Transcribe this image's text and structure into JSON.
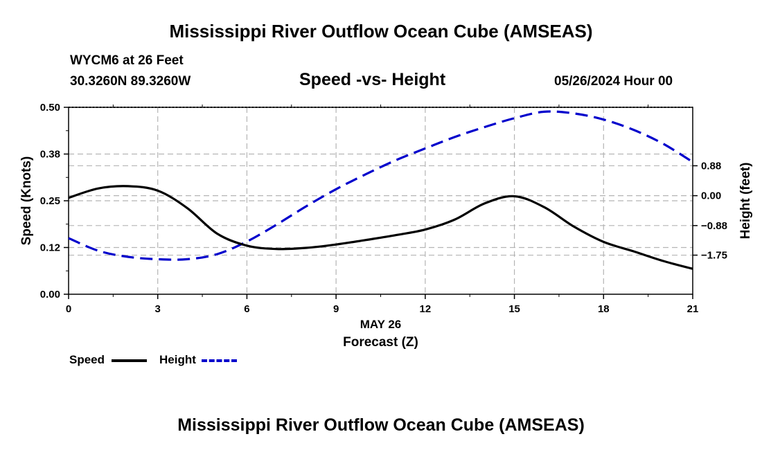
{
  "header": {
    "title": "Mississippi River Outflow Ocean Cube (AMSEAS)",
    "station": "WYCM6 at 26 Feet",
    "coords": "30.3260N  89.3260W",
    "chart_title": "Speed -vs- Height",
    "datetime": "05/26/2024 Hour 00"
  },
  "footer": {
    "title": "Mississippi River Outflow Ocean Cube (AMSEAS)"
  },
  "legend": {
    "speed_label": "Speed",
    "height_label": "Height"
  },
  "colors": {
    "speed": "#000000",
    "height": "#0000cc",
    "grid": "#b4b4b4"
  },
  "chart_data": {
    "type": "line",
    "title": "Speed -vs- Height",
    "xlabel": "Forecast (Z)",
    "xlabel_date": "MAY 26",
    "ylabel": "Speed (Knots)",
    "y2label": "Height (feet)",
    "xlim": [
      0,
      21
    ],
    "ylim": [
      0,
      0.5
    ],
    "y2lim": [
      -2.9,
      2.6
    ],
    "x_ticks": [
      0,
      3,
      6,
      9,
      12,
      15,
      18,
      21
    ],
    "x_tick_labels": [
      "0",
      "3",
      "6",
      "9",
      "12",
      "15",
      "18",
      "21"
    ],
    "y_ticks": [
      0,
      0.125,
      0.25,
      0.375,
      0.5
    ],
    "y_tick_labels": [
      "0.00",
      "0.12",
      "0.25",
      "0.38",
      "0.50"
    ],
    "y2_ticks": [
      -1.75,
      -0.88,
      0,
      0.88
    ],
    "y2_tick_labels": [
      "−1.75",
      "−0.88",
      "0.00",
      "0.88"
    ],
    "grid": true,
    "legend_position": "bottom-left",
    "series": [
      {
        "name": "Speed",
        "axis": "left",
        "style": "solid",
        "x": [
          0,
          1,
          2,
          3,
          4,
          5,
          6,
          7,
          8,
          9,
          10,
          11,
          12,
          13,
          14,
          15,
          16,
          17,
          18,
          19,
          20,
          21
        ],
        "values": [
          0.258,
          0.283,
          0.289,
          0.277,
          0.23,
          0.162,
          0.13,
          0.121,
          0.124,
          0.133,
          0.145,
          0.158,
          0.173,
          0.2,
          0.243,
          0.262,
          0.233,
          0.181,
          0.14,
          0.115,
          0.089,
          0.068
        ]
      },
      {
        "name": "Height",
        "axis": "right",
        "style": "dashed",
        "x": [
          0,
          1,
          2,
          3,
          4,
          5,
          6,
          7,
          8,
          9,
          10,
          11,
          12,
          13,
          14,
          15,
          16,
          17,
          18,
          19,
          20,
          21
        ],
        "values": [
          -1.25,
          -1.62,
          -1.8,
          -1.87,
          -1.87,
          -1.72,
          -1.35,
          -0.85,
          -0.31,
          0.19,
          0.63,
          1.04,
          1.39,
          1.73,
          2.02,
          2.28,
          2.47,
          2.42,
          2.24,
          1.94,
          1.53,
          0.99
        ]
      }
    ]
  }
}
